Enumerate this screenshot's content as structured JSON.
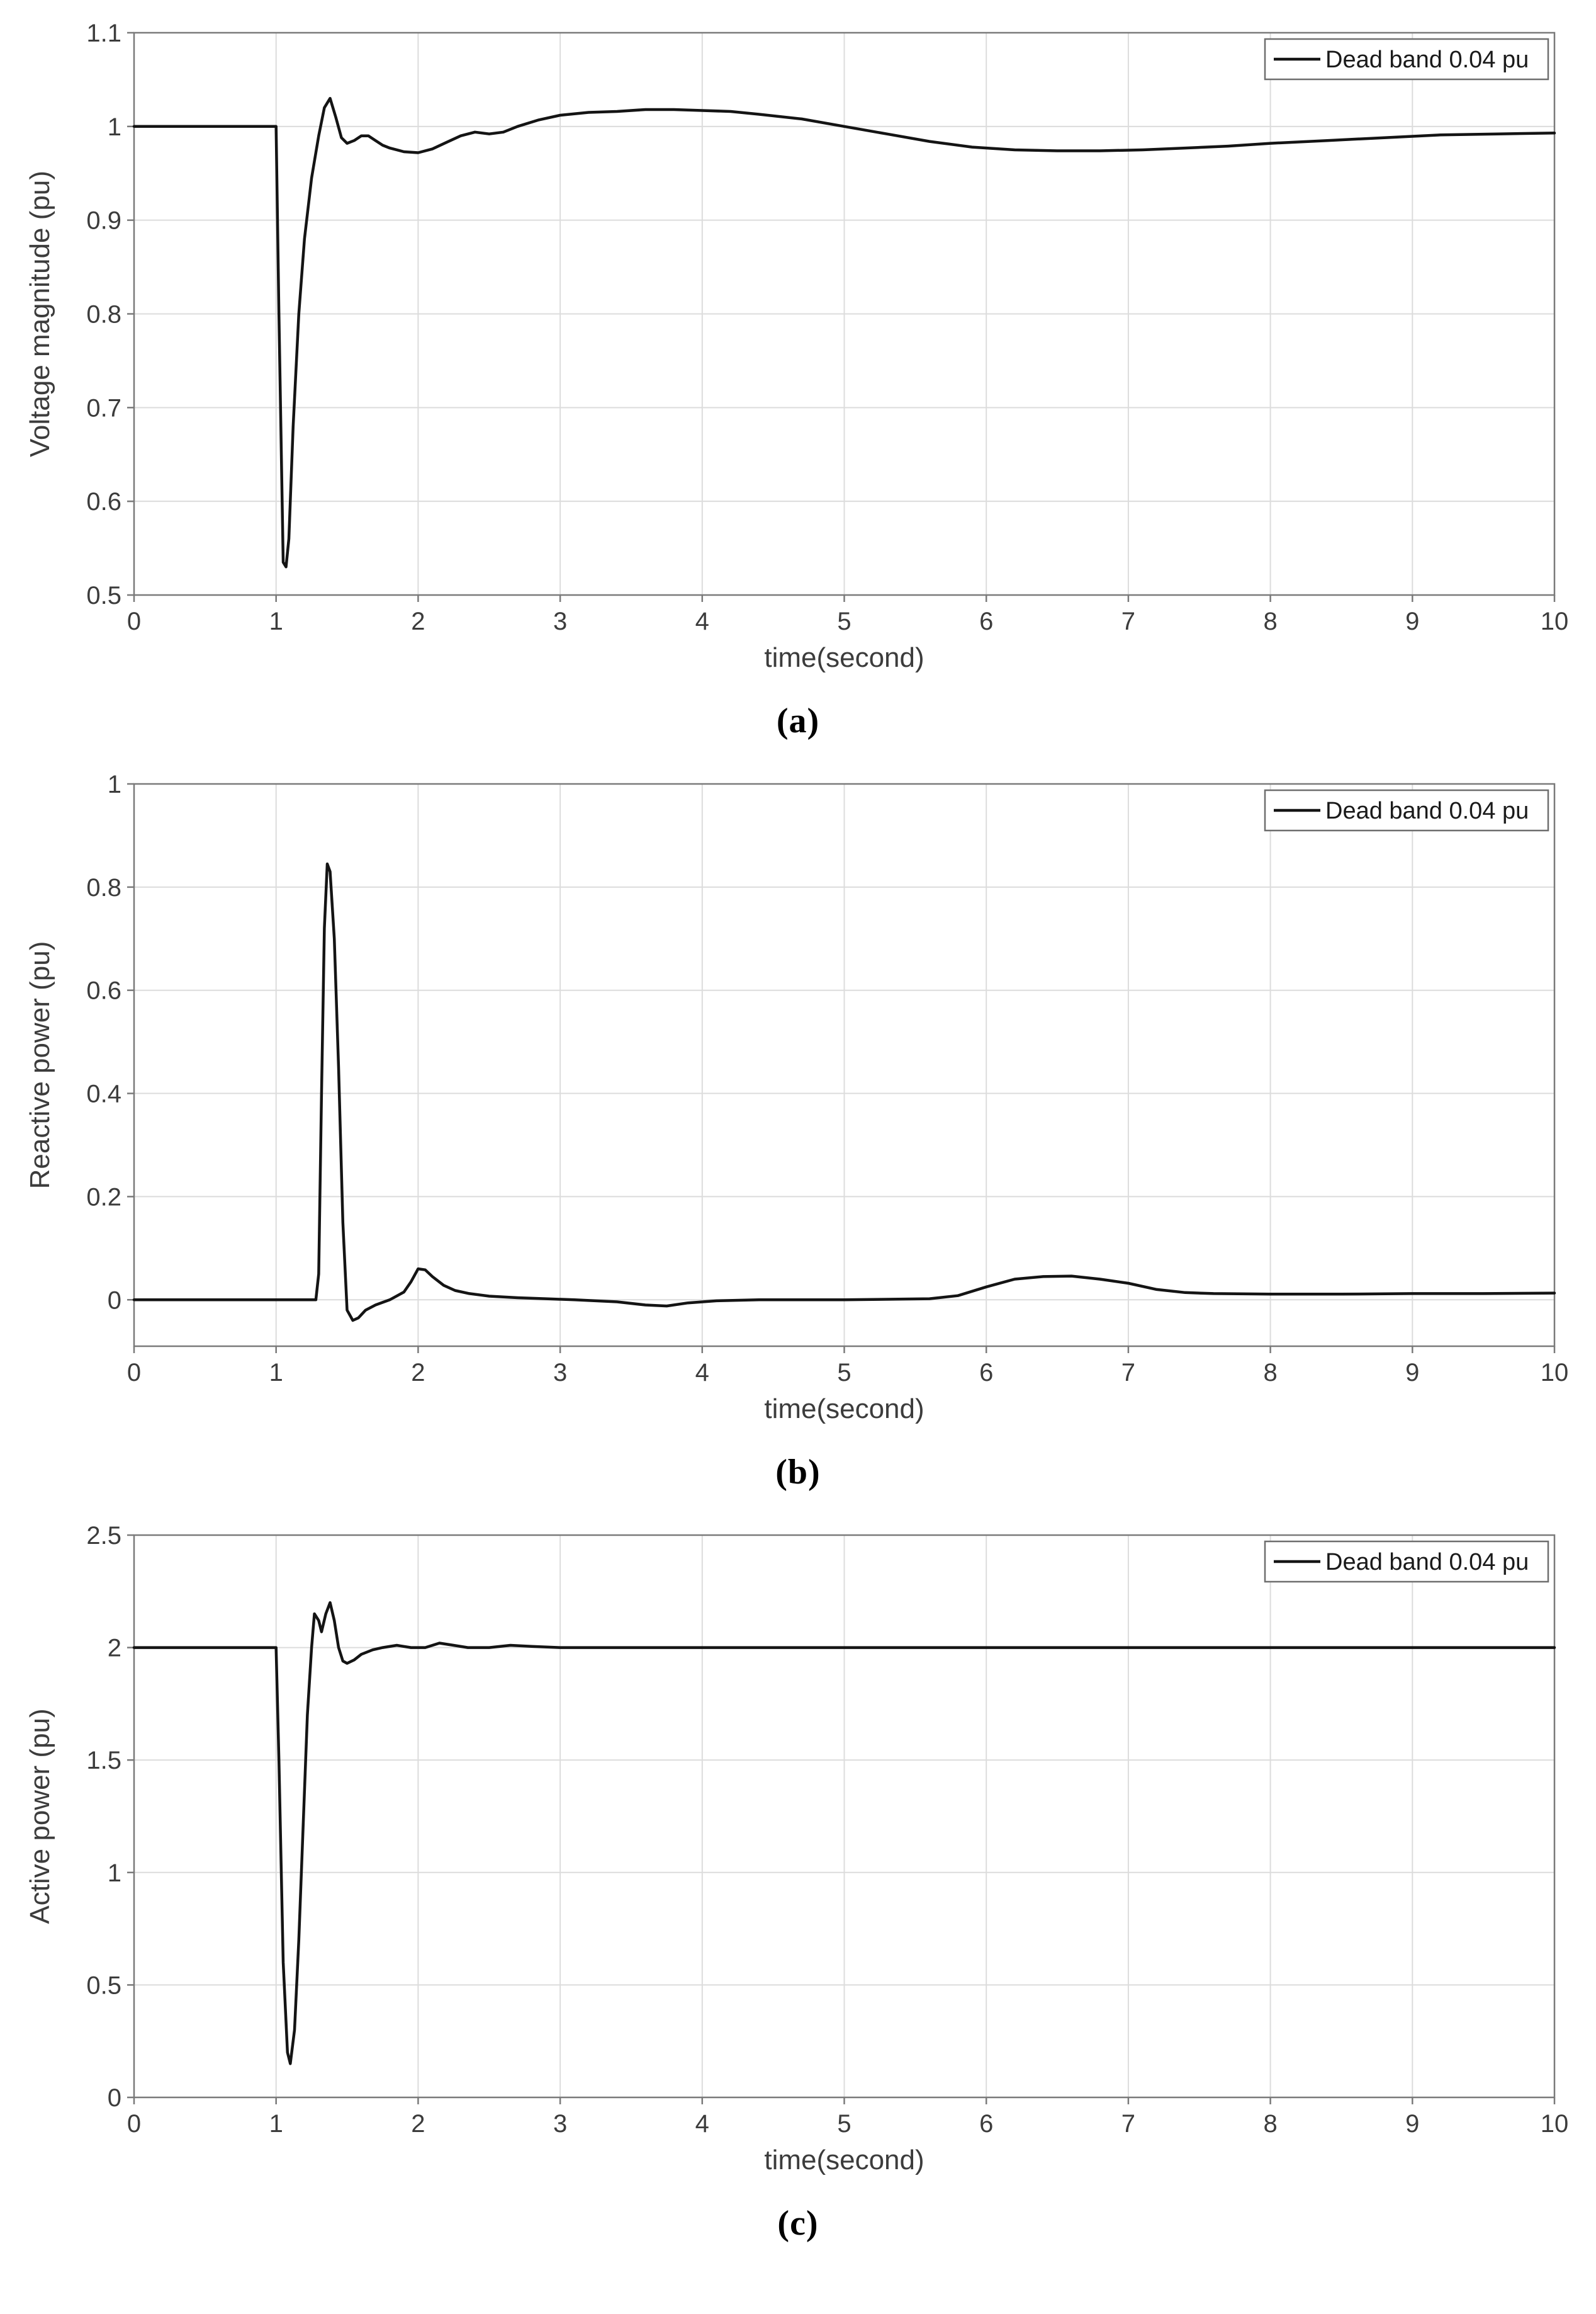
{
  "figure": {
    "captions": [
      "(a)",
      "(b)",
      "(c)"
    ],
    "legend_label": "Dead band 0.04 pu"
  },
  "style": {
    "line_color": "#141414",
    "grid_color": "#dcdcdc",
    "box_color": "#7a7a7a",
    "tick_text_color": "#3c3c3c",
    "legend_border_color": "#6e6e6e",
    "background": "#ffffff"
  },
  "chart_data": [
    {
      "type": "line",
      "title": "",
      "xlabel": "time(second)",
      "ylabel": "Voltage magnitude (pu)",
      "legend": "Dead band 0.04 pu",
      "legend_position": "top-right",
      "grid": true,
      "xlim": [
        0,
        10
      ],
      "ylim": [
        0.5,
        1.1
      ],
      "xticks": [
        0,
        1,
        2,
        3,
        4,
        5,
        6,
        7,
        8,
        9,
        10
      ],
      "yticks": [
        0.5,
        0.6,
        0.7,
        0.8,
        0.9,
        1,
        1.1
      ],
      "series": [
        {
          "name": "Dead band 0.04 pu",
          "points": [
            [
              0,
              1
            ],
            [
              0.5,
              1
            ],
            [
              0.98,
              1
            ],
            [
              1.0,
              1
            ],
            [
              1.02,
              0.8
            ],
            [
              1.05,
              0.535
            ],
            [
              1.07,
              0.53
            ],
            [
              1.09,
              0.56
            ],
            [
              1.12,
              0.68
            ],
            [
              1.16,
              0.8
            ],
            [
              1.2,
              0.88
            ],
            [
              1.25,
              0.945
            ],
            [
              1.3,
              0.99
            ],
            [
              1.34,
              1.02
            ],
            [
              1.38,
              1.03
            ],
            [
              1.42,
              1.01
            ],
            [
              1.46,
              0.988
            ],
            [
              1.5,
              0.982
            ],
            [
              1.55,
              0.985
            ],
            [
              1.6,
              0.99
            ],
            [
              1.65,
              0.99
            ],
            [
              1.7,
              0.985
            ],
            [
              1.75,
              0.98
            ],
            [
              1.8,
              0.977
            ],
            [
              1.9,
              0.973
            ],
            [
              2.0,
              0.972
            ],
            [
              2.1,
              0.976
            ],
            [
              2.2,
              0.983
            ],
            [
              2.3,
              0.99
            ],
            [
              2.4,
              0.994
            ],
            [
              2.5,
              0.992
            ],
            [
              2.6,
              0.994
            ],
            [
              2.7,
              1.0
            ],
            [
              2.85,
              1.007
            ],
            [
              3.0,
              1.012
            ],
            [
              3.2,
              1.015
            ],
            [
              3.4,
              1.016
            ],
            [
              3.6,
              1.018
            ],
            [
              3.8,
              1.018
            ],
            [
              4.0,
              1.017
            ],
            [
              4.2,
              1.016
            ],
            [
              4.4,
              1.013
            ],
            [
              4.7,
              1.008
            ],
            [
              5.0,
              1.0
            ],
            [
              5.3,
              0.992
            ],
            [
              5.6,
              0.984
            ],
            [
              5.9,
              0.978
            ],
            [
              6.2,
              0.975
            ],
            [
              6.5,
              0.974
            ],
            [
              6.8,
              0.974
            ],
            [
              7.1,
              0.975
            ],
            [
              7.4,
              0.977
            ],
            [
              7.7,
              0.979
            ],
            [
              8.0,
              0.982
            ],
            [
              8.4,
              0.985
            ],
            [
              8.8,
              0.988
            ],
            [
              9.2,
              0.991
            ],
            [
              9.6,
              0.992
            ],
            [
              10,
              0.993
            ]
          ]
        }
      ]
    },
    {
      "type": "line",
      "title": "",
      "xlabel": "time(second)",
      "ylabel": "Reactive power (pu)",
      "legend": "Dead band 0.04 pu",
      "legend_position": "top-right",
      "grid": true,
      "xlim": [
        0,
        10
      ],
      "ylim": [
        -0.09,
        1
      ],
      "xticks": [
        0,
        1,
        2,
        3,
        4,
        5,
        6,
        7,
        8,
        9,
        10
      ],
      "yticks": [
        0,
        0.2,
        0.4,
        0.6,
        0.8,
        1
      ],
      "series": [
        {
          "name": "Dead band 0.04 pu",
          "points": [
            [
              0,
              0
            ],
            [
              1.0,
              0
            ],
            [
              1.28,
              0
            ],
            [
              1.3,
              0.05
            ],
            [
              1.32,
              0.4
            ],
            [
              1.34,
              0.72
            ],
            [
              1.36,
              0.845
            ],
            [
              1.38,
              0.83
            ],
            [
              1.41,
              0.7
            ],
            [
              1.44,
              0.45
            ],
            [
              1.47,
              0.15
            ],
            [
              1.5,
              -0.02
            ],
            [
              1.54,
              -0.04
            ],
            [
              1.58,
              -0.035
            ],
            [
              1.63,
              -0.02
            ],
            [
              1.7,
              -0.01
            ],
            [
              1.8,
              0
            ],
            [
              1.9,
              0.015
            ],
            [
              1.95,
              0.035
            ],
            [
              2.0,
              0.06
            ],
            [
              2.05,
              0.058
            ],
            [
              2.1,
              0.045
            ],
            [
              2.18,
              0.028
            ],
            [
              2.26,
              0.018
            ],
            [
              2.36,
              0.012
            ],
            [
              2.5,
              0.007
            ],
            [
              2.7,
              0.004
            ],
            [
              2.9,
              0.002
            ],
            [
              3.1,
              0
            ],
            [
              3.4,
              -0.004
            ],
            [
              3.6,
              -0.01
            ],
            [
              3.75,
              -0.012
            ],
            [
              3.9,
              -0.006
            ],
            [
              4.1,
              -0.002
            ],
            [
              4.4,
              0
            ],
            [
              5.0,
              0
            ],
            [
              5.6,
              0.002
            ],
            [
              5.8,
              0.008
            ],
            [
              6.0,
              0.025
            ],
            [
              6.2,
              0.04
            ],
            [
              6.4,
              0.045
            ],
            [
              6.6,
              0.046
            ],
            [
              6.8,
              0.04
            ],
            [
              7.0,
              0.032
            ],
            [
              7.2,
              0.02
            ],
            [
              7.4,
              0.014
            ],
            [
              7.6,
              0.012
            ],
            [
              8.0,
              0.011
            ],
            [
              8.5,
              0.011
            ],
            [
              9.0,
              0.012
            ],
            [
              9.5,
              0.012
            ],
            [
              10,
              0.013
            ]
          ]
        }
      ]
    },
    {
      "type": "line",
      "title": "",
      "xlabel": "time(second)",
      "ylabel": "Active power (pu)",
      "legend": "Dead band 0.04 pu",
      "legend_position": "top-right",
      "grid": true,
      "xlim": [
        0,
        10
      ],
      "ylim": [
        0,
        2.5
      ],
      "xticks": [
        0,
        1,
        2,
        3,
        4,
        5,
        6,
        7,
        8,
        9,
        10
      ],
      "yticks": [
        0,
        0.5,
        1,
        1.5,
        2,
        2.5
      ],
      "series": [
        {
          "name": "Dead band 0.04 pu",
          "points": [
            [
              0,
              2
            ],
            [
              0.5,
              2
            ],
            [
              1.0,
              2
            ],
            [
              1.02,
              1.5
            ],
            [
              1.05,
              0.6
            ],
            [
              1.08,
              0.2
            ],
            [
              1.1,
              0.15
            ],
            [
              1.13,
              0.3
            ],
            [
              1.16,
              0.7
            ],
            [
              1.19,
              1.2
            ],
            [
              1.22,
              1.7
            ],
            [
              1.25,
              2.0
            ],
            [
              1.27,
              2.15
            ],
            [
              1.3,
              2.12
            ],
            [
              1.32,
              2.07
            ],
            [
              1.35,
              2.15
            ],
            [
              1.38,
              2.2
            ],
            [
              1.41,
              2.12
            ],
            [
              1.44,
              2.0
            ],
            [
              1.47,
              1.94
            ],
            [
              1.5,
              1.93
            ],
            [
              1.55,
              1.945
            ],
            [
              1.6,
              1.97
            ],
            [
              1.68,
              1.99
            ],
            [
              1.75,
              2.0
            ],
            [
              1.85,
              2.01
            ],
            [
              1.95,
              2.0
            ],
            [
              2.05,
              2.0
            ],
            [
              2.15,
              2.02
            ],
            [
              2.25,
              2.01
            ],
            [
              2.35,
              2.0
            ],
            [
              2.5,
              2.0
            ],
            [
              2.65,
              2.01
            ],
            [
              2.8,
              2.005
            ],
            [
              3.0,
              2.0
            ],
            [
              3.5,
              2.0
            ],
            [
              4.0,
              2.0
            ],
            [
              4.5,
              2.0
            ],
            [
              5.0,
              2.0
            ],
            [
              5.5,
              2.0
            ],
            [
              6.0,
              2.0
            ],
            [
              6.5,
              2.0
            ],
            [
              7.0,
              2.0
            ],
            [
              7.5,
              2.0
            ],
            [
              8.0,
              2.0
            ],
            [
              8.5,
              2.0
            ],
            [
              9.0,
              2.0
            ],
            [
              9.5,
              2.0
            ],
            [
              10,
              2.0
            ]
          ]
        }
      ]
    }
  ]
}
